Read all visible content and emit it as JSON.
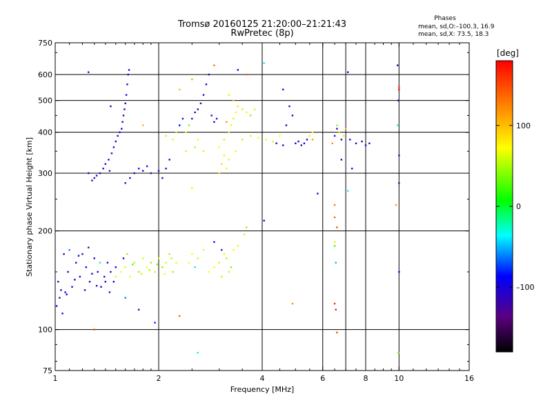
{
  "chart_data": {
    "type": "scatter",
    "title": "Tromsø 20160125 21:20:00–21:21:43",
    "subtitle": "RwPretec (8p)",
    "xlabel": "Frequency [MHz]",
    "ylabel": "Stationary phase Virtual Height [km]",
    "xscale": "log",
    "yscale": "log",
    "xlim": [
      1,
      16
    ],
    "ylim": [
      75,
      750
    ],
    "grid": true,
    "x_ticks": [
      1,
      2,
      4,
      6,
      8,
      10,
      16
    ],
    "x_tick_labels": [
      "1",
      "2",
      "4",
      "6",
      "8",
      "10",
      "16"
    ],
    "x_grid_lines": [
      2,
      4,
      6,
      7,
      8,
      10
    ],
    "y_ticks": [
      75,
      100,
      200,
      300,
      400,
      500,
      600,
      750
    ],
    "y_tick_labels": [
      "75",
      "100",
      "200",
      "300",
      "400",
      "500",
      "600",
      "750"
    ],
    "y_grid_lines": [
      100,
      200,
      300,
      400,
      500,
      600
    ],
    "stats": {
      "header": "Phases",
      "o_line": "mean, sd,O:–100.3, 16.9",
      "x_line": "mean, sd,X:  73.5, 18.3"
    },
    "colorbar": {
      "label": "[deg]",
      "tick_labels": [
        "100",
        "0",
        "–100"
      ],
      "tick_values": [
        100,
        0,
        -100
      ],
      "range": [
        -180,
        180
      ],
      "colormap": "rainbow (black-purple-blue-cyan-green-yellow-orange-red)"
    },
    "series": [
      {
        "points": [
          [
            1.01,
            118,
            -105
          ],
          [
            1.03,
            125,
            -110
          ],
          [
            1.05,
            112,
            -100
          ],
          [
            1.07,
            130,
            -95
          ],
          [
            1.02,
            140,
            -115
          ],
          [
            1.09,
            150,
            -100
          ],
          [
            1.12,
            135,
            -105
          ],
          [
            1.15,
            160,
            -110
          ],
          [
            1.18,
            145,
            -100
          ],
          [
            1.2,
            170,
            -120
          ],
          [
            1.23,
            155,
            -95
          ],
          [
            1.26,
            140,
            -105
          ],
          [
            1.3,
            165,
            -110
          ],
          [
            1.33,
            150,
            -100
          ],
          [
            1.36,
            135,
            -115
          ],
          [
            1.39,
            145,
            -105
          ],
          [
            1.42,
            160,
            -100
          ],
          [
            1.45,
            150,
            -110
          ],
          [
            1.48,
            140,
            -100
          ],
          [
            1.5,
            155,
            -95
          ],
          [
            1.1,
            175,
            -60
          ],
          [
            1.25,
            178,
            -130
          ],
          [
            1.35,
            160,
            -20
          ],
          [
            1.04,
            132,
            -100
          ],
          [
            1.08,
            128,
            -108
          ],
          [
            1.14,
            142,
            -102
          ],
          [
            1.22,
            132,
            -112
          ],
          [
            1.28,
            148,
            -98
          ],
          [
            1.32,
            136,
            -106
          ],
          [
            1.4,
            140,
            -104
          ],
          [
            1.44,
            130,
            -110
          ],
          [
            1.17,
            168,
            -96
          ],
          [
            1.06,
            170,
            -118
          ]
        ]
      },
      {
        "points": [
          [
            1.5,
            145,
            80
          ],
          [
            1.55,
            150,
            70
          ],
          [
            1.6,
            155,
            60
          ],
          [
            1.65,
            145,
            75
          ],
          [
            1.7,
            160,
            50
          ],
          [
            1.75,
            150,
            40
          ],
          [
            1.8,
            165,
            60
          ],
          [
            1.85,
            155,
            70
          ],
          [
            1.9,
            160,
            45
          ],
          [
            1.95,
            150,
            55
          ],
          [
            2.0,
            165,
            65
          ],
          [
            2.05,
            155,
            40
          ],
          [
            2.1,
            160,
            60
          ],
          [
            2.15,
            170,
            50
          ],
          [
            2.2,
            150,
            45
          ],
          [
            2.25,
            160,
            65
          ],
          [
            1.58,
            165,
            -95
          ],
          [
            1.68,
            158,
            30
          ],
          [
            1.78,
            148,
            85
          ],
          [
            1.88,
            152,
            50
          ],
          [
            1.98,
            158,
            40
          ],
          [
            2.08,
            148,
            70
          ],
          [
            2.18,
            165,
            55
          ],
          [
            1.62,
            170,
            45
          ]
        ]
      },
      {
        "points": [
          [
            2.45,
            160,
            75
          ],
          [
            2.5,
            170,
            70
          ],
          [
            2.55,
            155,
            -40
          ],
          [
            2.6,
            165,
            60
          ],
          [
            2.7,
            175,
            80
          ],
          [
            2.8,
            150,
            70
          ],
          [
            2.9,
            155,
            75
          ],
          [
            3.0,
            160,
            85
          ],
          [
            3.1,
            170,
            80
          ],
          [
            3.15,
            165,
            50
          ],
          [
            3.2,
            150,
            60
          ],
          [
            3.3,
            175,
            65
          ],
          [
            3.4,
            180,
            80
          ],
          [
            3.55,
            195,
            60
          ],
          [
            3.6,
            205,
            40
          ],
          [
            3.05,
            145,
            55
          ],
          [
            3.25,
            155,
            40
          ]
        ]
      },
      {
        "points": [
          [
            1.28,
            285,
            -110
          ],
          [
            1.3,
            290,
            -105
          ],
          [
            1.32,
            295,
            -110
          ],
          [
            1.35,
            300,
            -100
          ],
          [
            1.38,
            310,
            -105
          ],
          [
            1.4,
            320,
            -110
          ],
          [
            1.43,
            330,
            -100
          ],
          [
            1.46,
            345,
            -105
          ],
          [
            1.48,
            360,
            -110
          ],
          [
            1.5,
            375,
            -100
          ],
          [
            1.52,
            390,
            -105
          ],
          [
            1.54,
            400,
            -110
          ],
          [
            1.56,
            410,
            -100
          ],
          [
            1.57,
            430,
            -105
          ],
          [
            1.58,
            450,
            -110
          ],
          [
            1.59,
            470,
            -100
          ],
          [
            1.6,
            490,
            -105
          ],
          [
            1.61,
            520,
            -100
          ],
          [
            1.62,
            560,
            -110
          ],
          [
            1.63,
            600,
            -105
          ],
          [
            1.64,
            620,
            -100
          ],
          [
            1.6,
            280,
            -110
          ],
          [
            1.65,
            290,
            -105
          ],
          [
            1.7,
            300,
            -100
          ],
          [
            1.75,
            310,
            -110
          ],
          [
            1.8,
            305,
            -105
          ],
          [
            1.85,
            315,
            -100
          ],
          [
            1.9,
            300,
            -110
          ],
          [
            2.0,
            305,
            -105
          ],
          [
            2.05,
            290,
            -100
          ],
          [
            2.1,
            310,
            -110
          ],
          [
            2.15,
            330,
            -105
          ],
          [
            1.44,
            305,
            -120
          ],
          [
            1.25,
            300,
            -100
          ]
        ]
      },
      {
        "points": [
          [
            2.2,
            380,
            60
          ],
          [
            2.25,
            400,
            55
          ],
          [
            2.3,
            420,
            -90
          ],
          [
            2.35,
            440,
            -100
          ],
          [
            2.4,
            400,
            70
          ],
          [
            2.45,
            420,
            40
          ],
          [
            2.5,
            440,
            -105
          ],
          [
            2.55,
            460,
            -110
          ],
          [
            2.6,
            470,
            -100
          ],
          [
            2.65,
            490,
            -105
          ],
          [
            2.7,
            520,
            -110
          ],
          [
            2.75,
            560,
            -100
          ],
          [
            2.8,
            600,
            -105
          ],
          [
            2.85,
            450,
            -110
          ],
          [
            2.9,
            430,
            -100
          ],
          [
            2.95,
            440,
            -105
          ],
          [
            2.6,
            380,
            75
          ],
          [
            2.7,
            350,
            80
          ],
          [
            2.55,
            360,
            50
          ],
          [
            2.4,
            350,
            60
          ]
        ]
      },
      {
        "points": [
          [
            3.0,
            300,
            85
          ],
          [
            3.05,
            320,
            90
          ],
          [
            3.1,
            340,
            80
          ],
          [
            3.15,
            310,
            75
          ],
          [
            3.0,
            360,
            70
          ],
          [
            3.1,
            380,
            85
          ],
          [
            3.2,
            400,
            60
          ],
          [
            3.25,
            420,
            75
          ],
          [
            3.3,
            440,
            80
          ],
          [
            3.35,
            460,
            70
          ],
          [
            3.4,
            480,
            85
          ],
          [
            3.3,
            500,
            90
          ],
          [
            3.2,
            520,
            60
          ],
          [
            3.5,
            470,
            55
          ],
          [
            3.6,
            460,
            70
          ],
          [
            3.7,
            450,
            40
          ],
          [
            3.8,
            470,
            60
          ],
          [
            3.2,
            330,
            80
          ],
          [
            3.35,
            350,
            65
          ],
          [
            3.15,
            430,
            120
          ]
        ]
      },
      {
        "points": [
          [
            3.5,
            380,
            50
          ],
          [
            3.7,
            390,
            60
          ],
          [
            3.9,
            385,
            70
          ],
          [
            4.1,
            380,
            75
          ],
          [
            4.3,
            375,
            80
          ],
          [
            4.5,
            390,
            70
          ],
          [
            4.7,
            420,
            -100
          ],
          [
            4.8,
            480,
            -105
          ],
          [
            4.9,
            450,
            -110
          ],
          [
            5.0,
            370,
            -100
          ],
          [
            5.1,
            375,
            -105
          ],
          [
            5.2,
            365,
            -110
          ],
          [
            5.3,
            370,
            -100
          ],
          [
            5.4,
            380,
            -105
          ],
          [
            5.5,
            390,
            60
          ],
          [
            5.6,
            400,
            70
          ],
          [
            4.4,
            370,
            -90
          ],
          [
            4.6,
            365,
            -100
          ]
        ]
      },
      {
        "points": [
          [
            6.5,
            390,
            -100
          ],
          [
            6.6,
            410,
            -105
          ],
          [
            6.7,
            400,
            100
          ],
          [
            6.8,
            380,
            -110
          ],
          [
            6.9,
            390,
            60
          ],
          [
            7.0,
            410,
            100
          ],
          [
            7.2,
            380,
            -100
          ],
          [
            7.5,
            370,
            -105
          ],
          [
            7.8,
            375,
            -110
          ],
          [
            8.0,
            365,
            -100
          ],
          [
            8.2,
            370,
            -105
          ],
          [
            6.4,
            370,
            120
          ],
          [
            6.6,
            420,
            40
          ]
        ]
      },
      {
        "points": [
          [
            1.25,
            610,
            -110
          ],
          [
            1.45,
            480,
            -100
          ],
          [
            2.1,
            390,
            85
          ],
          [
            2.3,
            540,
            100
          ],
          [
            2.5,
            580,
            110
          ],
          [
            2.9,
            640,
            130
          ],
          [
            3.4,
            620,
            -100
          ],
          [
            3.6,
            600,
            140
          ],
          [
            4.05,
            650,
            -40
          ],
          [
            4.6,
            540,
            -100
          ],
          [
            4.05,
            215,
            -110
          ],
          [
            5.8,
            260,
            -105
          ],
          [
            6.5,
            240,
            130
          ],
          [
            6.5,
            220,
            140
          ],
          [
            6.6,
            205,
            150
          ],
          [
            6.5,
            180,
            20
          ],
          [
            6.55,
            160,
            -50
          ],
          [
            6.5,
            120,
            165
          ],
          [
            6.55,
            115,
            170
          ],
          [
            6.6,
            98,
            150
          ],
          [
            6.5,
            185,
            80
          ],
          [
            7.1,
            610,
            -100
          ],
          [
            7.1,
            265,
            -40
          ],
          [
            9.9,
            640,
            -110
          ],
          [
            10.0,
            550,
            160
          ],
          [
            10.0,
            540,
            180
          ],
          [
            9.95,
            500,
            -100
          ],
          [
            10.0,
            340,
            -120
          ],
          [
            9.9,
            420,
            -30
          ],
          [
            10.0,
            280,
            -140
          ],
          [
            10.0,
            150,
            -100
          ],
          [
            9.95,
            85,
            40
          ],
          [
            2.6,
            85,
            -30
          ],
          [
            1.8,
            420,
            100
          ],
          [
            4.9,
            120,
            120
          ],
          [
            1.3,
            100,
            150
          ],
          [
            1.6,
            125,
            -60
          ],
          [
            1.95,
            105,
            -80
          ],
          [
            1.75,
            115,
            -110
          ],
          [
            2.5,
            270,
            80
          ],
          [
            2.3,
            110,
            140
          ],
          [
            2.9,
            185,
            -100
          ],
          [
            3.05,
            175,
            -80
          ],
          [
            9.8,
            240,
            120
          ],
          [
            6.8,
            330,
            -110
          ],
          [
            7.3,
            310,
            -100
          ],
          [
            5.6,
            380,
            110
          ]
        ]
      }
    ]
  }
}
